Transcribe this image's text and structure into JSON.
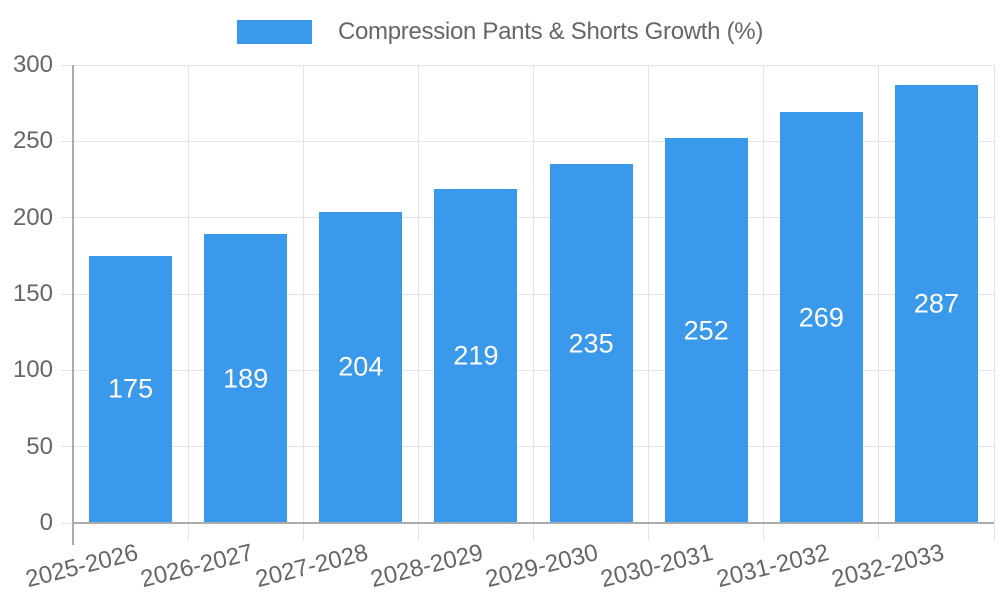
{
  "legend": {
    "label": "Compression Pants & Shorts Growth (%)"
  },
  "chart_data": {
    "type": "bar",
    "title": "Compression Pants & Shorts Growth (%)",
    "categories": [
      "2025-2026",
      "2026-2027",
      "2027-2028",
      "2028-2029",
      "2029-2030",
      "2030-2031",
      "2031-2032",
      "2032-2033"
    ],
    "values": [
      175,
      189,
      204,
      219,
      235,
      252,
      269,
      287
    ],
    "xlabel": "",
    "ylabel": "",
    "ylim": [
      0,
      300
    ],
    "yticks": [
      0,
      50,
      100,
      150,
      200,
      250,
      300
    ],
    "grid": true,
    "legend_position": "top",
    "bar_color": "#3A99EB",
    "value_label_color": "#FFFFFF",
    "axis_text_color": "#666666",
    "grid_color": "#E4E4E4",
    "axis_line_color": "#ABABAB"
  }
}
